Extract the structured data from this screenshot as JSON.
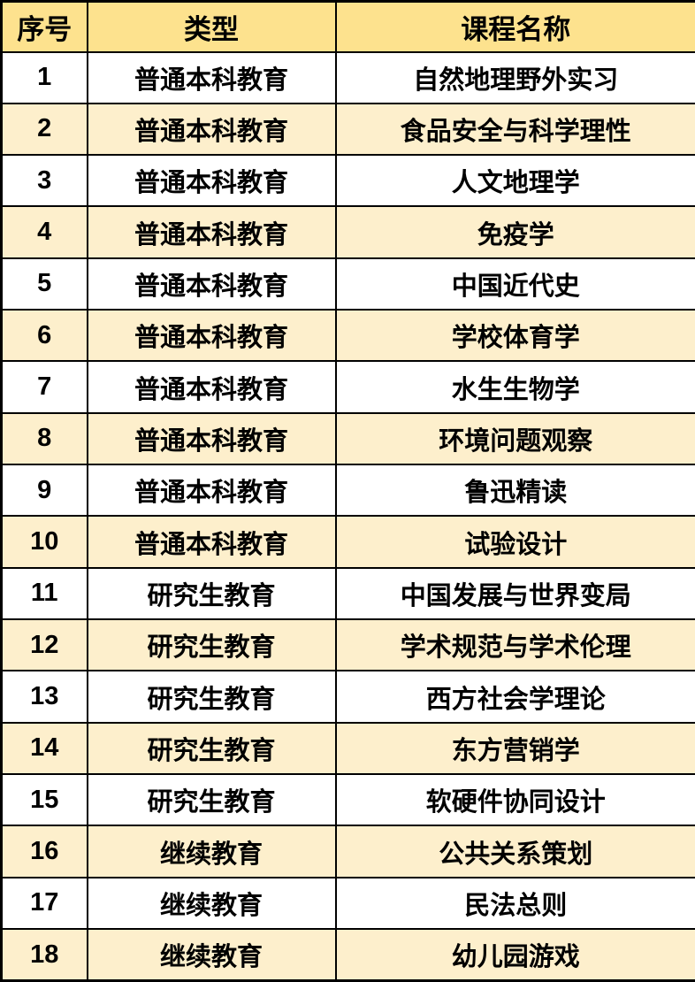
{
  "colors": {
    "header_bg": "#FDE28E",
    "stripe_bg": "#FDEFCC",
    "row_bg": "#FFFFFF",
    "border": "#000000",
    "text": "#000000"
  },
  "table": {
    "columns": [
      "序号",
      "类型",
      "课程名称"
    ],
    "rows": [
      {
        "no": "1",
        "type": "普通本科教育",
        "course": "自然地理野外实习"
      },
      {
        "no": "2",
        "type": "普通本科教育",
        "course": "食品安全与科学理性"
      },
      {
        "no": "3",
        "type": "普通本科教育",
        "course": "人文地理学"
      },
      {
        "no": "4",
        "type": "普通本科教育",
        "course": "免疫学"
      },
      {
        "no": "5",
        "type": "普通本科教育",
        "course": "中国近代史"
      },
      {
        "no": "6",
        "type": "普通本科教育",
        "course": "学校体育学"
      },
      {
        "no": "7",
        "type": "普通本科教育",
        "course": "水生生物学"
      },
      {
        "no": "8",
        "type": "普通本科教育",
        "course": "环境问题观察"
      },
      {
        "no": "9",
        "type": "普通本科教育",
        "course": "鲁迅精读"
      },
      {
        "no": "10",
        "type": "普通本科教育",
        "course": "试验设计"
      },
      {
        "no": "11",
        "type": "研究生教育",
        "course": "中国发展与世界变局"
      },
      {
        "no": "12",
        "type": "研究生教育",
        "course": "学术规范与学术伦理"
      },
      {
        "no": "13",
        "type": "研究生教育",
        "course": "西方社会学理论"
      },
      {
        "no": "14",
        "type": "研究生教育",
        "course": "东方营销学"
      },
      {
        "no": "15",
        "type": "研究生教育",
        "course": "软硬件协同设计"
      },
      {
        "no": "16",
        "type": "继续教育",
        "course": "公共关系策划"
      },
      {
        "no": "17",
        "type": "继续教育",
        "course": "民法总则"
      },
      {
        "no": "18",
        "type": "继续教育",
        "course": "幼儿园游戏"
      }
    ]
  }
}
